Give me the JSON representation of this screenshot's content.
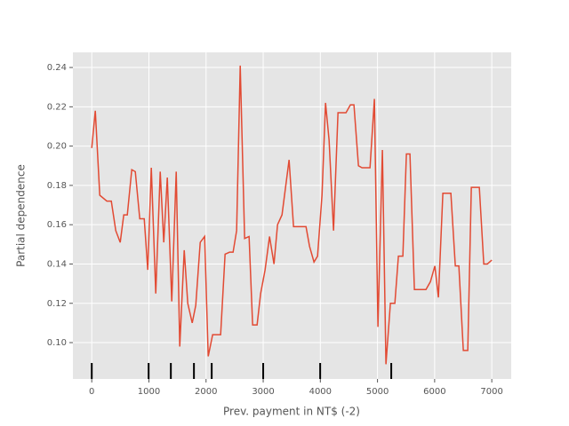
{
  "chart_data": {
    "type": "line",
    "xlabel": "Prev. payment in NT$ (-2)",
    "ylabel": "Partial dependence",
    "x": [
      0,
      62,
      140,
      264,
      342,
      420,
      498,
      560,
      622,
      700,
      762,
      840,
      918,
      980,
      1042,
      1120,
      1198,
      1260,
      1322,
      1400,
      1478,
      1540,
      1618,
      1680,
      1758,
      1820,
      1898,
      1975,
      2038,
      2115,
      2255,
      2333,
      2411,
      2473,
      2535,
      2598,
      2675,
      2753,
      2815,
      2893,
      2955,
      3033,
      3111,
      3189,
      3251,
      3329,
      3391,
      3453,
      3531,
      3671,
      3749,
      3811,
      3889,
      3951,
      4029,
      4091,
      4153,
      4231,
      4309,
      4449,
      4526,
      4588,
      4667,
      4729,
      4869,
      4946,
      5008,
      5086,
      5148,
      5226,
      5304,
      5366,
      5444,
      5506,
      5568,
      5646,
      5786,
      5848,
      5926,
      6004,
      6066,
      6144,
      6284,
      6362,
      6424,
      6502,
      6580,
      6642,
      6782,
      6860,
      6922,
      7000
    ],
    "series": [
      {
        "color": "#e24a33",
        "values": [
          0.199,
          0.218,
          0.175,
          0.172,
          0.172,
          0.157,
          0.151,
          0.165,
          0.165,
          0.188,
          0.187,
          0.163,
          0.163,
          0.137,
          0.189,
          0.125,
          0.187,
          0.151,
          0.184,
          0.121,
          0.187,
          0.098,
          0.147,
          0.12,
          0.11,
          0.119,
          0.151,
          0.154,
          0.093,
          0.104,
          0.104,
          0.145,
          0.146,
          0.146,
          0.157,
          0.241,
          0.153,
          0.154,
          0.109,
          0.109,
          0.125,
          0.137,
          0.154,
          0.14,
          0.16,
          0.165,
          0.179,
          0.193,
          0.159,
          0.159,
          0.159,
          0.149,
          0.141,
          0.144,
          0.175,
          0.222,
          0.203,
          0.157,
          0.217,
          0.217,
          0.221,
          0.221,
          0.19,
          0.189,
          0.189,
          0.224,
          0.108,
          0.198,
          0.089,
          0.12,
          0.12,
          0.144,
          0.144,
          0.196,
          0.196,
          0.127,
          0.127,
          0.127,
          0.131,
          0.139,
          0.123,
          0.176,
          0.176,
          0.139,
          0.139,
          0.096,
          0.096,
          0.179,
          0.179,
          0.14,
          0.14,
          0.142
        ]
      }
    ],
    "deciles": [
      0,
      995,
      1384,
      1788,
      2099,
      3000,
      3997,
      5241
    ],
    "xlim": [
      -330,
      7340
    ],
    "ylim": [
      0.0815,
      0.2477
    ],
    "xticks": [
      0,
      1000,
      2000,
      3000,
      4000,
      5000,
      6000,
      7000
    ],
    "yticks": [
      {
        "value": 0.1,
        "label": "0.10"
      },
      0.12,
      0.14,
      0.16,
      0.18,
      {
        "value": 0.2,
        "label": "0.20"
      },
      0.22,
      0.24
    ],
    "grid": true
  }
}
